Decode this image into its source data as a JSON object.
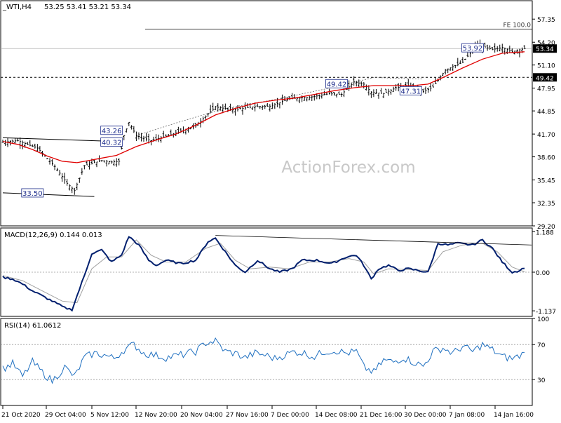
{
  "header": {
    "symbol": "_WTI,H4",
    "ohlc": "53.25 53.41 53.21 53.34"
  },
  "watermark": "ActionForex.com",
  "colors": {
    "candle": "#000000",
    "sma": "#e00000",
    "macd": "#001f6e",
    "macd_signal": "#a0a0a0",
    "rsi": "#1e6fc0",
    "grid": "#808080"
  },
  "chart_data": [
    {
      "type": "candlestick",
      "title": "_WTI,H4",
      "ylim": [
        29.2,
        58.9
      ],
      "y_ticks": [
        "57.35",
        "54.20",
        "51.10",
        "47.95",
        "44.85",
        "41.70",
        "38.60",
        "35.45",
        "32.35",
        "29.20"
      ],
      "x_ticks": [
        "21 Oct 2020",
        "29 Oct 04:00",
        "5 Nov 12:00",
        "12 Nov 20:00",
        "20 Nov 04:00",
        "27 Nov 16:00",
        "7 Dec 00:00",
        "14 Dec 08:00",
        "21 Dec 16:00",
        "30 Dec 00:00",
        "7 Jan 08:00",
        "14 Jan 16:00"
      ],
      "price_path": [
        [
          0,
          40.6
        ],
        [
          6,
          40.8
        ],
        [
          14,
          39.8
        ],
        [
          21,
          37.3
        ],
        [
          26,
          35.0
        ],
        [
          29,
          34.0
        ],
        [
          33,
          37.4
        ],
        [
          40,
          38.1
        ],
        [
          44,
          37.9
        ],
        [
          47,
          38.0
        ],
        [
          49,
          41.5
        ],
        [
          51,
          43.3
        ],
        [
          54,
          41.5
        ],
        [
          60,
          40.8
        ],
        [
          68,
          41.6
        ],
        [
          78,
          42.8
        ],
        [
          86,
          45.4
        ],
        [
          93,
          45.0
        ],
        [
          101,
          45.4
        ],
        [
          108,
          45.5
        ],
        [
          116,
          46.5
        ],
        [
          124,
          46.7
        ],
        [
          132,
          47.2
        ],
        [
          137,
          47.1
        ],
        [
          142,
          48.8
        ],
        [
          146,
          48.5
        ],
        [
          149,
          47.4
        ],
        [
          154,
          47.2
        ],
        [
          159,
          48.0
        ],
        [
          165,
          48.3
        ],
        [
          170,
          47.5
        ],
        [
          174,
          48.1
        ],
        [
          179,
          50.4
        ],
        [
          186,
          51.5
        ],
        [
          192,
          53.9
        ],
        [
          198,
          53.2
        ],
        [
          202,
          53.5
        ],
        [
          206,
          52.9
        ],
        [
          211,
          53.34
        ]
      ],
      "sma_path": [
        [
          0,
          40.7
        ],
        [
          6,
          40.3
        ],
        [
          12,
          39.6
        ],
        [
          18,
          38.7
        ],
        [
          24,
          38.0
        ],
        [
          30,
          37.8
        ],
        [
          38,
          38.3
        ],
        [
          46,
          38.8
        ],
        [
          54,
          40.0
        ],
        [
          62,
          40.9
        ],
        [
          70,
          41.7
        ],
        [
          78,
          42.9
        ],
        [
          86,
          44.3
        ],
        [
          94,
          45.2
        ],
        [
          102,
          45.9
        ],
        [
          110,
          46.3
        ],
        [
          118,
          46.6
        ],
        [
          126,
          47.1
        ],
        [
          134,
          47.6
        ],
        [
          142,
          48.0
        ],
        [
          150,
          48.3
        ],
        [
          158,
          48.3
        ],
        [
          166,
          48.3
        ],
        [
          172,
          48.5
        ],
        [
          178,
          49.4
        ],
        [
          186,
          50.7
        ],
        [
          194,
          51.9
        ],
        [
          202,
          52.7
        ],
        [
          211,
          52.9
        ]
      ],
      "labels": [
        {
          "text": "33.50",
          "price": 33.5
        },
        {
          "text": "43.26",
          "price": 43.26
        },
        {
          "text": "40.32",
          "price": 40.32
        },
        {
          "text": "49.42",
          "price": 49.42
        },
        {
          "text": "47.31",
          "price": 47.31
        },
        {
          "text": "53.92",
          "price": 53.92
        }
      ],
      "horizontal_lines": [
        {
          "label": "FE 100.0",
          "price": 56.0
        },
        {
          "label": "49.42",
          "price": 49.42,
          "style": "dashed"
        },
        {
          "label": "53.34",
          "price": 53.34,
          "style": "solid-thin"
        }
      ],
      "trendlines": [
        {
          "from": [
            0,
            41.2
          ],
          "to": [
            36,
            40.7
          ]
        },
        {
          "from": [
            0,
            33.7
          ],
          "to": [
            29,
            33.2
          ]
        }
      ]
    },
    {
      "type": "line",
      "title": "MACD(12,26,9) 0.144 0.013",
      "ylim": [
        -1.3,
        1.3
      ],
      "y_ticks": [
        "1.188",
        "0.00",
        "-1.137"
      ],
      "macd": [
        [
          0,
          -0.15
        ],
        [
          4,
          -0.2
        ],
        [
          8,
          -0.35
        ],
        [
          12,
          -0.55
        ],
        [
          16,
          -0.7
        ],
        [
          20,
          -0.85
        ],
        [
          25,
          -1.05
        ],
        [
          28,
          -1.1
        ],
        [
          30,
          -0.7
        ],
        [
          33,
          -0.1
        ],
        [
          36,
          0.55
        ],
        [
          40,
          0.65
        ],
        [
          44,
          0.3
        ],
        [
          48,
          0.5
        ],
        [
          51,
          1.05
        ],
        [
          55,
          0.8
        ],
        [
          59,
          0.35
        ],
        [
          62,
          0.2
        ],
        [
          66,
          0.35
        ],
        [
          72,
          0.25
        ],
        [
          78,
          0.35
        ],
        [
          83,
          0.9
        ],
        [
          86,
          1.0
        ],
        [
          90,
          0.6
        ],
        [
          94,
          0.2
        ],
        [
          98,
          0.0
        ],
        [
          103,
          0.35
        ],
        [
          108,
          0.1
        ],
        [
          112,
          0.0
        ],
        [
          117,
          0.1
        ],
        [
          121,
          0.35
        ],
        [
          127,
          0.35
        ],
        [
          133,
          0.25
        ],
        [
          139,
          0.45
        ],
        [
          143,
          0.5
        ],
        [
          146,
          0.2
        ],
        [
          149,
          -0.2
        ],
        [
          152,
          0.1
        ],
        [
          156,
          0.2
        ],
        [
          160,
          0.05
        ],
        [
          164,
          0.1
        ],
        [
          168,
          0.05
        ],
        [
          172,
          0.0
        ],
        [
          176,
          0.85
        ],
        [
          180,
          0.8
        ],
        [
          184,
          0.85
        ],
        [
          190,
          0.8
        ],
        [
          194,
          0.95
        ],
        [
          198,
          0.7
        ],
        [
          202,
          0.3
        ],
        [
          206,
          0.0
        ],
        [
          209,
          0.05
        ],
        [
          211,
          0.14
        ]
      ],
      "signal": [
        [
          0,
          -0.1
        ],
        [
          8,
          -0.25
        ],
        [
          16,
          -0.55
        ],
        [
          24,
          -0.85
        ],
        [
          30,
          -0.9
        ],
        [
          36,
          0.1
        ],
        [
          42,
          0.45
        ],
        [
          48,
          0.45
        ],
        [
          54,
          0.95
        ],
        [
          60,
          0.5
        ],
        [
          66,
          0.3
        ],
        [
          74,
          0.3
        ],
        [
          82,
          0.7
        ],
        [
          88,
          0.85
        ],
        [
          94,
          0.35
        ],
        [
          100,
          0.1
        ],
        [
          108,
          0.15
        ],
        [
          116,
          0.1
        ],
        [
          124,
          0.3
        ],
        [
          132,
          0.3
        ],
        [
          140,
          0.4
        ],
        [
          146,
          0.3
        ],
        [
          150,
          -0.05
        ],
        [
          156,
          0.1
        ],
        [
          164,
          0.08
        ],
        [
          172,
          0.05
        ],
        [
          178,
          0.6
        ],
        [
          186,
          0.8
        ],
        [
          194,
          0.85
        ],
        [
          200,
          0.6
        ],
        [
          206,
          0.15
        ],
        [
          211,
          0.01
        ]
      ],
      "trendline": {
        "from": [
          86,
          1.08
        ],
        "to": [
          211,
          0.8
        ]
      }
    },
    {
      "type": "line",
      "title": "RSI(14) 61.0612",
      "ylim": [
        0,
        100
      ],
      "y_ticks": [
        "100",
        "70",
        "30"
      ],
      "values": [
        [
          0,
          42
        ],
        [
          4,
          48
        ],
        [
          8,
          33
        ],
        [
          12,
          50
        ],
        [
          16,
          38
        ],
        [
          20,
          28
        ],
        [
          25,
          44
        ],
        [
          29,
          33
        ],
        [
          33,
          55
        ],
        [
          37,
          60
        ],
        [
          41,
          58
        ],
        [
          45,
          54
        ],
        [
          49,
          64
        ],
        [
          53,
          70
        ],
        [
          57,
          60
        ],
        [
          61,
          58
        ],
        [
          66,
          55
        ],
        [
          72,
          58
        ],
        [
          78,
          62
        ],
        [
          82,
          72
        ],
        [
          86,
          74
        ],
        [
          90,
          62
        ],
        [
          94,
          60
        ],
        [
          98,
          55
        ],
        [
          102,
          60
        ],
        [
          106,
          58
        ],
        [
          110,
          54
        ],
        [
          114,
          58
        ],
        [
          118,
          62
        ],
        [
          122,
          60
        ],
        [
          126,
          56
        ],
        [
          130,
          62
        ],
        [
          135,
          63
        ],
        [
          139,
          60
        ],
        [
          143,
          62
        ],
        [
          146,
          44
        ],
        [
          150,
          38
        ],
        [
          154,
          52
        ],
        [
          158,
          50
        ],
        [
          162,
          55
        ],
        [
          166,
          50
        ],
        [
          170,
          45
        ],
        [
          174,
          62
        ],
        [
          178,
          66
        ],
        [
          182,
          60
        ],
        [
          186,
          68
        ],
        [
          190,
          62
        ],
        [
          194,
          70
        ],
        [
          198,
          64
        ],
        [
          202,
          56
        ],
        [
          206,
          54
        ],
        [
          209,
          57
        ],
        [
          211,
          61
        ]
      ]
    }
  ]
}
